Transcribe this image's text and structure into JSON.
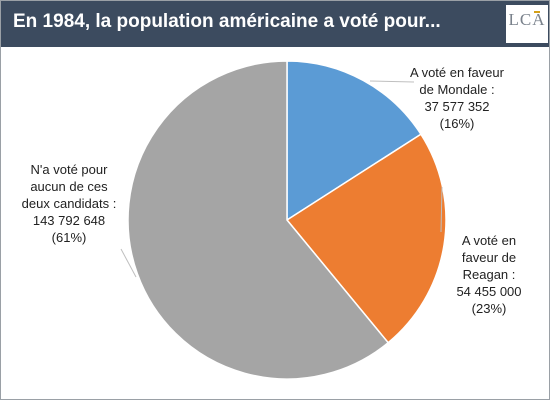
{
  "header": {
    "title": "En 1984, la population américaine a voté pour...",
    "logo_text": "LCA"
  },
  "colors": {
    "header_bg": "#3c4b5f",
    "mondale": "#5b9bd5",
    "reagan": "#ed7d31",
    "none": "#a5a5a5"
  },
  "chart_data": {
    "type": "pie",
    "title": "En 1984, la population américaine a voté pour...",
    "categories": [
      "A voté en faveur de Mondale",
      "A voté en faveur de Reagan",
      "N'a voté pour aucun de ces deux candidats"
    ],
    "values": [
      37577352,
      54455000,
      143792648
    ],
    "percentages": [
      "16%",
      "23%",
      "61%"
    ],
    "colors": [
      "#5b9bd5",
      "#ed7d31",
      "#a5a5a5"
    ],
    "labels": [
      [
        "A voté en faveur",
        "de Mondale :",
        "37 577 352",
        "(16%)"
      ],
      [
        "A voté en",
        "faveur de",
        "Reagan :",
        "54 455 000",
        "(23%)"
      ],
      [
        "N'a voté pour",
        "aucun de ces",
        "deux candidats :",
        "143 792 648",
        "(61%)"
      ]
    ],
    "legend": "none"
  }
}
